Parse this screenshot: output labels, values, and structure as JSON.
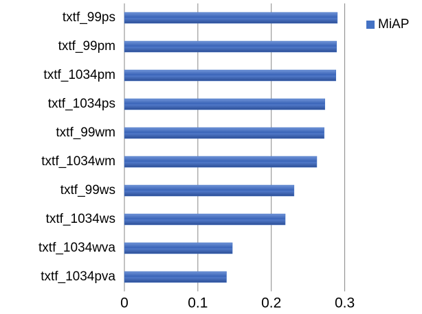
{
  "chart_data": {
    "type": "bar",
    "orientation": "horizontal",
    "categories": [
      "txtf_99ps",
      "txtf_99pm",
      "txtf_1034pm",
      "txtf_1034ps",
      "txtf_99wm",
      "txtf_1034wm",
      "txtf_99ws",
      "txtf_1034ws",
      "txtf_1034wva",
      "txtf_1034pva"
    ],
    "series": [
      {
        "name": "MiAP",
        "color": "#4472c4",
        "values": [
          0.29,
          0.289,
          0.288,
          0.273,
          0.272,
          0.262,
          0.231,
          0.219,
          0.147,
          0.139
        ]
      }
    ],
    "xlim": [
      0,
      0.35
    ],
    "xticks": [
      0,
      0.1,
      0.2,
      0.3
    ],
    "grid": true,
    "legend": "top-right"
  }
}
